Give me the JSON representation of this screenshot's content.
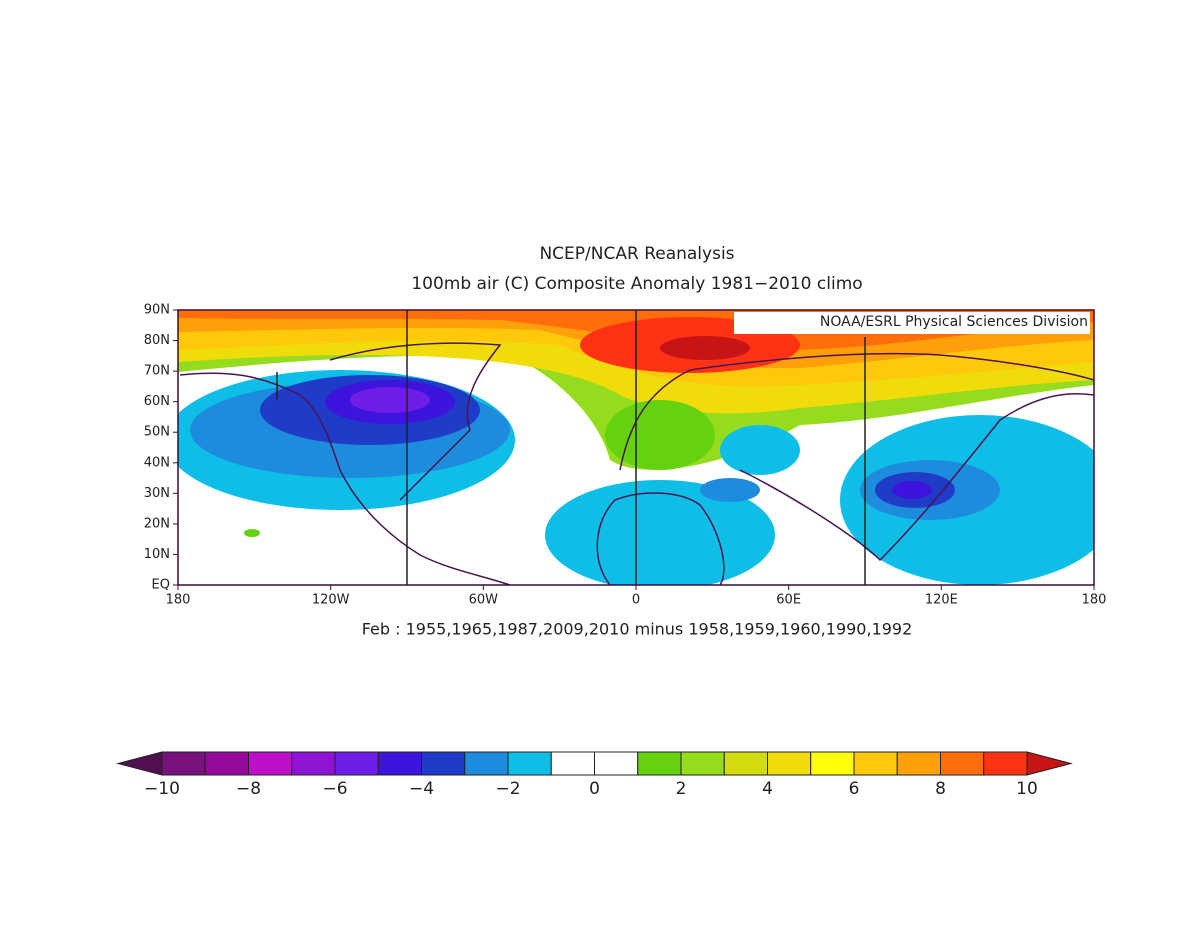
{
  "header": {
    "title": "NCEP/NCAR Reanalysis",
    "subtitle": "100mb air (C) Composite Anomaly 1981−2010 climo"
  },
  "map": {
    "credit": "NOAA/ESRL Physical Sciences Division",
    "xlim": [
      -180,
      180
    ],
    "ylim": [
      0,
      90
    ],
    "lon_ticks": [
      {
        "value": -180,
        "label": "180"
      },
      {
        "value": -120,
        "label": "120W"
      },
      {
        "value": -60,
        "label": "60W"
      },
      0,
      {
        "value": 60,
        "label": "60E"
      },
      {
        "value": 120,
        "label": "120E"
      },
      {
        "value": 180,
        "label": "180"
      }
    ],
    "lat_ticks": [
      {
        "value": 0,
        "label": "EQ"
      },
      {
        "value": 10,
        "label": "10N"
      },
      {
        "value": 20,
        "label": "20N"
      },
      {
        "value": 30,
        "label": "30N"
      },
      {
        "value": 40,
        "label": "40N"
      },
      {
        "value": 50,
        "label": "50N"
      },
      {
        "value": 60,
        "label": "60N"
      },
      {
        "value": 70,
        "label": "70N"
      },
      {
        "value": 80,
        "label": "80N"
      },
      {
        "value": 90,
        "label": "90N"
      }
    ]
  },
  "caption": "Feb : 1955,1965,1987,2009,2010 minus 1958,1959,1960,1990,1992",
  "colorbar": {
    "range": [
      -10,
      10
    ],
    "under": "#501050",
    "over": "#c81414",
    "colors": [
      "#78107e",
      "#960a9b",
      "#be0fc8",
      "#8c14d2",
      "#6e1ee6",
      "#3c14dc",
      "#1e3cc8",
      "#1e8cdc",
      "#0fbee6",
      "#ffffff",
      "#ffffff",
      "#64d20f",
      "#96dc1e",
      "#d2dc0a",
      "#f0dc0a",
      "#ffff0a",
      "#ffc80a",
      "#ffa00a",
      "#ff6e0a",
      "#ff3214"
    ],
    "ticks": [
      {
        "value": -10,
        "label": "−10"
      },
      {
        "value": -8,
        "label": "−8"
      },
      {
        "value": -6,
        "label": "−6"
      },
      {
        "value": -4,
        "label": "−4"
      },
      {
        "value": -2,
        "label": "−2"
      },
      0,
      2,
      4,
      6,
      8,
      10
    ]
  }
}
